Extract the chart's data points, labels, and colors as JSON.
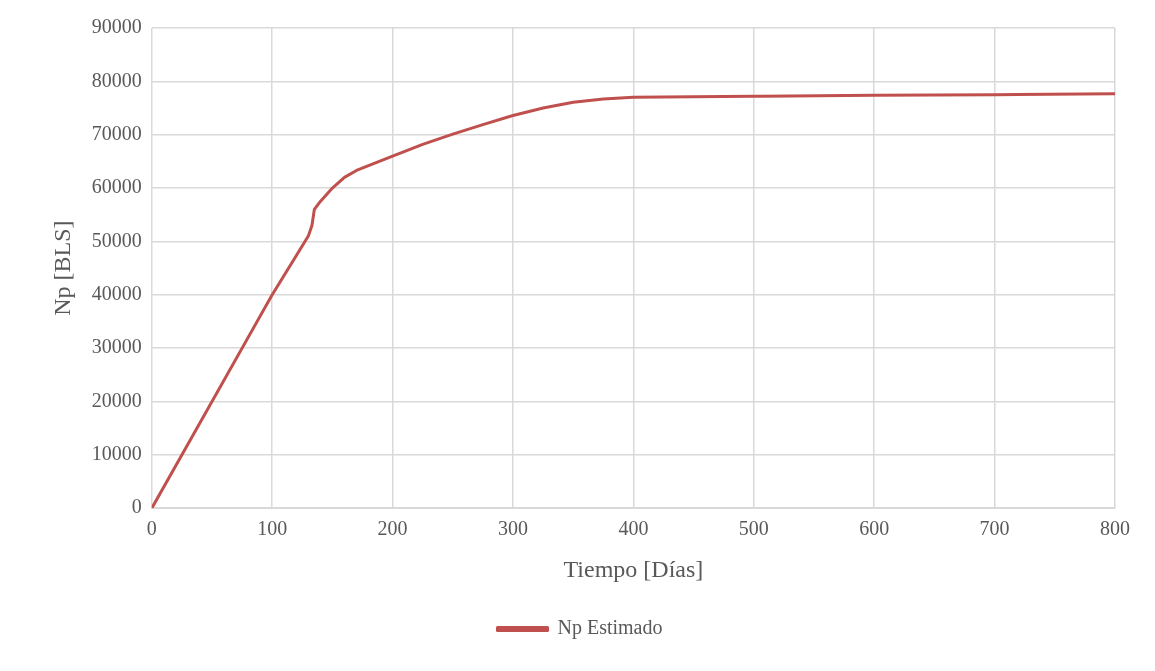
{
  "chart_data": {
    "type": "line",
    "xlabel": "Tiempo [Días]",
    "ylabel": "Np [BLS]",
    "series": [
      {
        "name": "Np Estimado",
        "color": "#c0504d",
        "x": [
          0,
          100,
          130,
          133,
          135,
          140,
          150,
          160,
          170,
          180,
          200,
          225,
          250,
          275,
          300,
          325,
          350,
          375,
          400,
          500,
          600,
          700,
          800
        ],
        "values": [
          0,
          40000,
          51000,
          53000,
          56000,
          57500,
          60000,
          62000,
          63300,
          64200,
          66000,
          68200,
          70100,
          71900,
          73600,
          75000,
          76100,
          76700,
          77000,
          77200,
          77400,
          77500,
          77700
        ]
      }
    ],
    "xlim": [
      0,
      800
    ],
    "xticks": [
      0,
      100,
      200,
      300,
      400,
      500,
      600,
      700,
      800
    ],
    "ylim": [
      0,
      90000
    ],
    "yticks": [
      0,
      10000,
      20000,
      30000,
      40000,
      50000,
      60000,
      70000,
      80000,
      90000
    ],
    "grid": true,
    "legend": "bottom",
    "marker": "none",
    "line_style": "solid"
  }
}
